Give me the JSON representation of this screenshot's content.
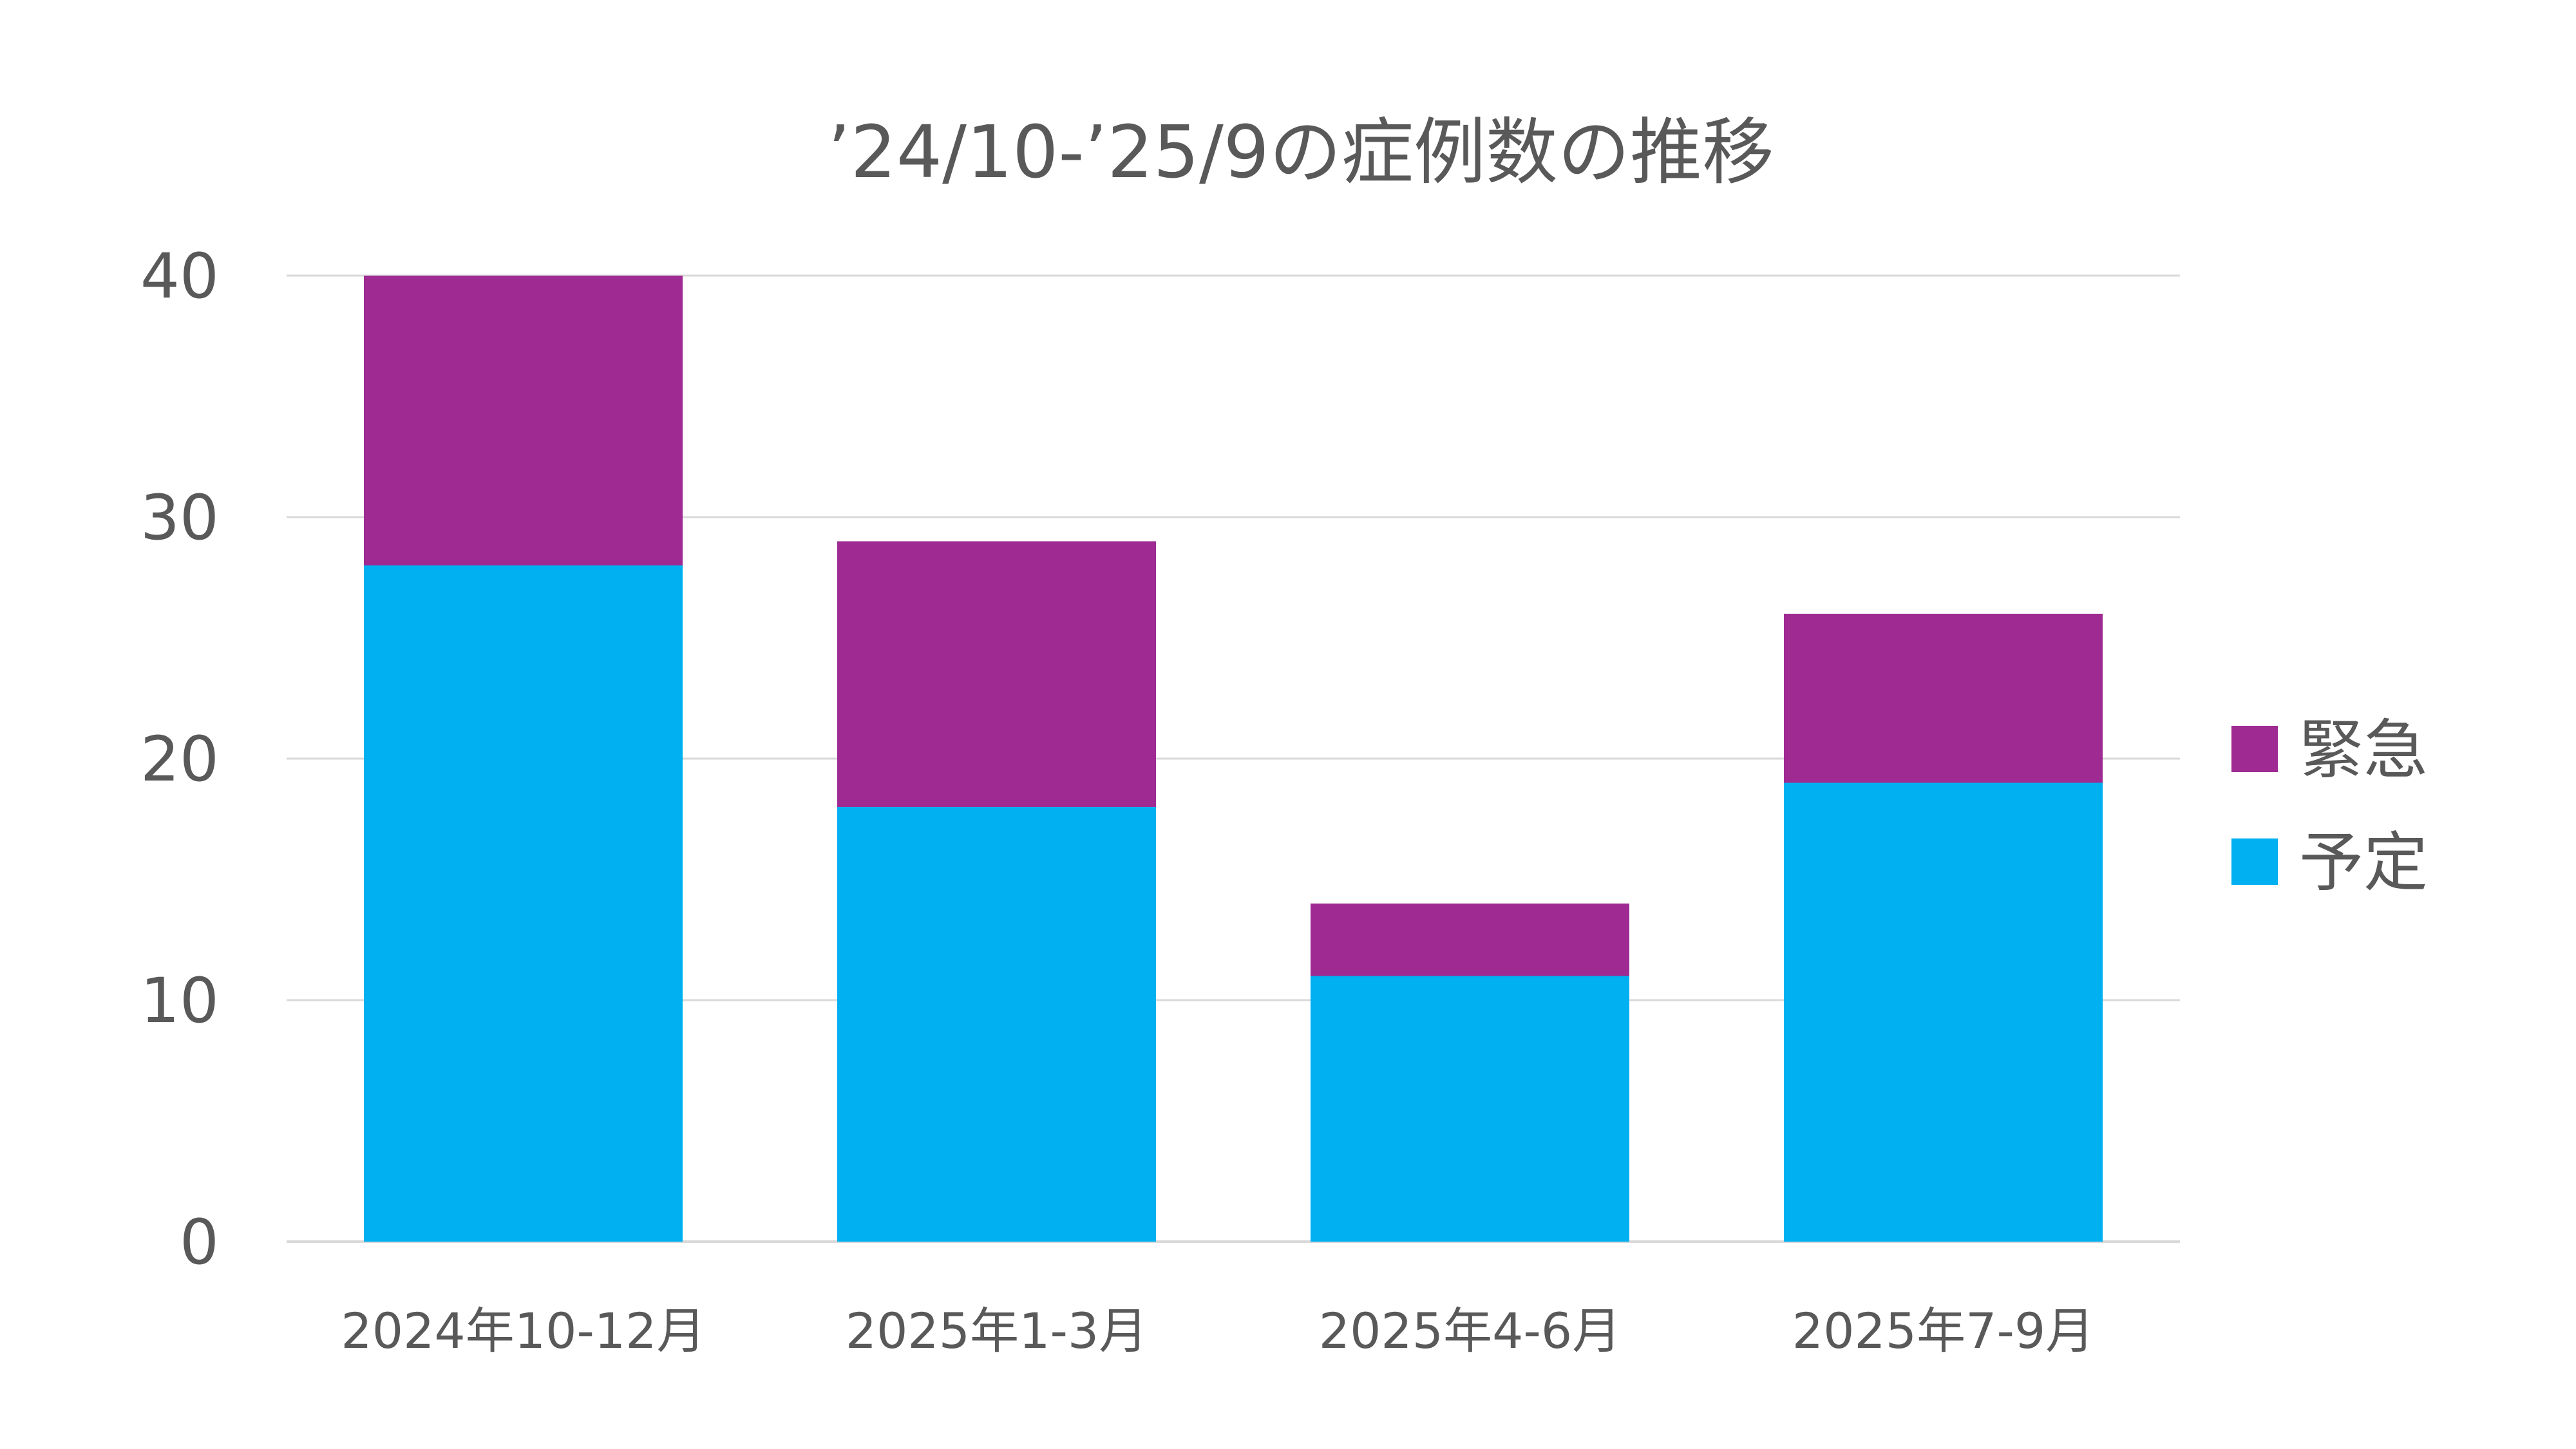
{
  "chart_data": {
    "type": "bar",
    "stacked": true,
    "title": "’24/10-’25/9の症例数の推移",
    "xlabel": "",
    "ylabel": "",
    "categories": [
      "2024年10-12月",
      "2025年1-3月",
      "2025年4-6月",
      "2025年7-9月"
    ],
    "series": [
      {
        "name": "予定",
        "values": [
          28,
          18,
          11,
          19
        ],
        "color": "#00b0f0"
      },
      {
        "name": "緊急",
        "values": [
          12,
          11,
          3,
          7
        ],
        "color": "#9e2a92"
      }
    ],
    "ylim": [
      0,
      40
    ],
    "yticks": [
      0,
      10,
      20,
      30,
      40
    ],
    "grid": true,
    "legend": "right",
    "legend_order": [
      "緊急",
      "予定"
    ]
  }
}
